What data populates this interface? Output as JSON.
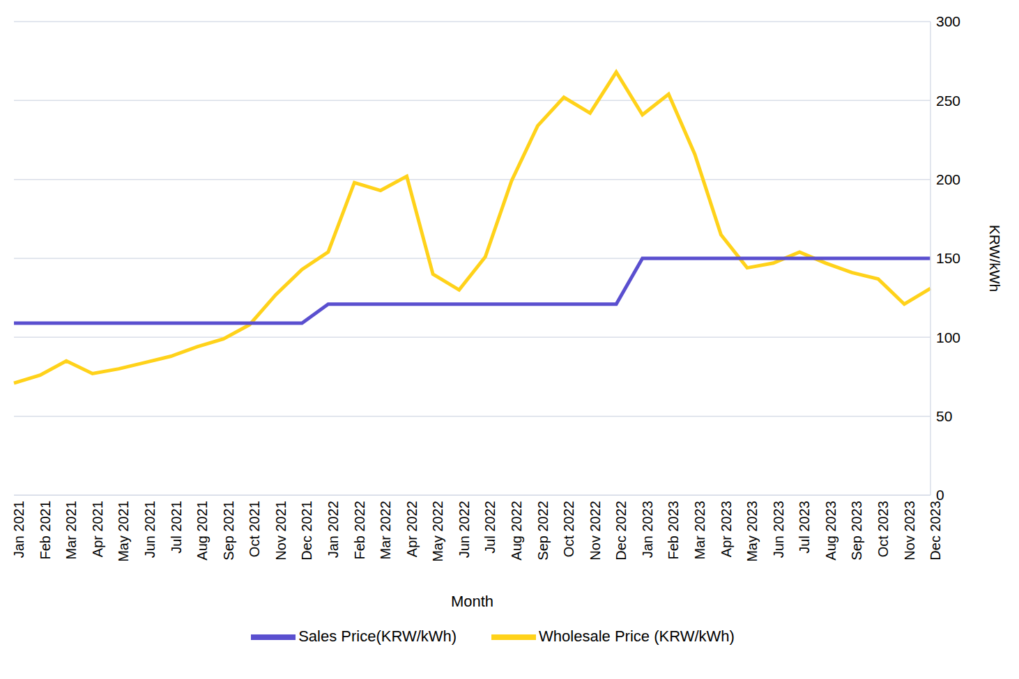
{
  "chart_data": {
    "type": "line",
    "x_label": "Month",
    "y_label": "KRW/kWh",
    "categories": [
      "Jan 2021",
      "Feb 2021",
      "Mar 2021",
      "Apr 2021",
      "May 2021",
      "Jun 2021",
      "Jul 2021",
      "Aug 2021",
      "Sep 2021",
      "Oct 2021",
      "Nov 2021",
      "Dec 2021",
      "Jan 2022",
      "Feb 2022",
      "Mar 2022",
      "Apr 2022",
      "May 2022",
      "Jun 2022",
      "Jul 2022",
      "Aug 2022",
      "Sep 2022",
      "Oct 2022",
      "Nov 2022",
      "Dec 2022",
      "Jan 2023",
      "Feb 2023",
      "Mar 2023",
      "Apr 2023",
      "May 2023",
      "Jun 2023",
      "Jul 2023",
      "Aug 2023",
      "Sep 2023",
      "Oct 2023",
      "Nov 2023",
      "Dec 2023"
    ],
    "series": [
      {
        "name": "Wholesale Price (KRW/kWh)",
        "color": "#FFD21A",
        "values": [
          71,
          76,
          85,
          77,
          80,
          84,
          88,
          94,
          99,
          108,
          127,
          143,
          154,
          198,
          193,
          202,
          140,
          130,
          151,
          199,
          234,
          252,
          242,
          268,
          241,
          254,
          216,
          165,
          144,
          147,
          154,
          147,
          141,
          137,
          121,
          131
        ]
      },
      {
        "name": "Sales Price(KRW/kWh)",
        "color": "#5A4FCF",
        "values": [
          109,
          109,
          109,
          109,
          109,
          109,
          109,
          109,
          109,
          109,
          109,
          109,
          121,
          121,
          121,
          121,
          121,
          121,
          121,
          121,
          121,
          121,
          121,
          121,
          150,
          150,
          150,
          150,
          150,
          150,
          150,
          150,
          150,
          150,
          150,
          150
        ]
      }
    ],
    "ylim": [
      0,
      300
    ],
    "yticks": [
      0,
      50,
      100,
      150,
      200,
      250,
      300
    ],
    "grid": true,
    "legend": "bottom"
  }
}
